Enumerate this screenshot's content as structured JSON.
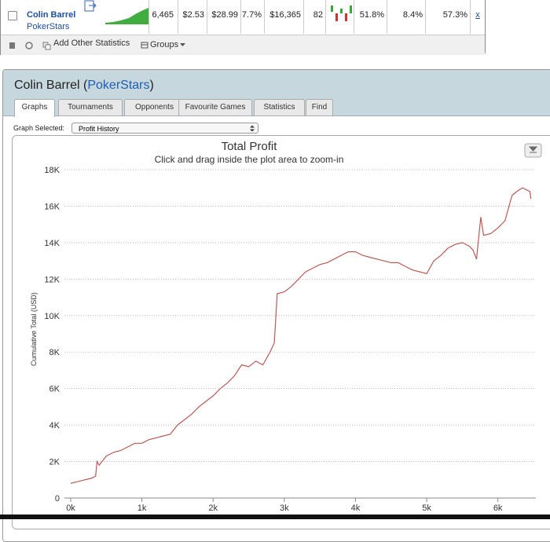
{
  "player_row": {
    "name": "Colin Barrel",
    "site": "PokerStars",
    "stats": [
      "6,465",
      "$2.53",
      "$28.99",
      "7.7%",
      "$16,365",
      "82",
      "51.8%",
      "8.4%",
      "57.3%"
    ],
    "remove": "x"
  },
  "toolbar": {
    "add_stats": "Add Other Statistics",
    "groups": "Groups"
  },
  "panel": {
    "title_parts": [
      "Colin Barrel (",
      "PokerStars",
      ")"
    ],
    "tabs": [
      "Graphs",
      "Tournaments",
      "Opponents",
      "Favourite Games",
      "Statistics",
      "Find"
    ],
    "graph_selected_label": "Graph Selected:",
    "graph_select": "Profit History"
  },
  "chart_data": {
    "type": "line",
    "title": "Total Profit",
    "subtitle": "Click and drag inside the plot area to zoom-in",
    "ylabel": "Cumulative Total (USD)",
    "x": [
      0,
      100,
      200,
      300,
      350,
      370,
      400,
      500,
      600,
      700,
      800,
      900,
      1000,
      1100,
      1200,
      1300,
      1400,
      1500,
      1600,
      1700,
      1800,
      1900,
      2000,
      2100,
      2200,
      2300,
      2400,
      2500,
      2600,
      2700,
      2800,
      2860,
      2900,
      3000,
      3100,
      3200,
      3300,
      3400,
      3500,
      3600,
      3700,
      3800,
      3900,
      4000,
      4100,
      4200,
      4300,
      4400,
      4500,
      4600,
      4700,
      4800,
      4900,
      5000,
      5100,
      5200,
      5300,
      5400,
      5500,
      5600,
      5650,
      5700,
      5760,
      5800,
      5900,
      6000,
      6100,
      6200,
      6300,
      6350,
      6450,
      6465
    ],
    "series": [
      {
        "name": "Total Profit",
        "color": "#b85a55",
        "values": [
          800,
          900,
          1000,
          1100,
          1200,
          2000,
          1800,
          2300,
          2500,
          2600,
          2800,
          3000,
          3000,
          3200,
          3300,
          3400,
          3500,
          4000,
          4300,
          4600,
          5000,
          5300,
          5600,
          6000,
          6300,
          6700,
          7300,
          7200,
          7500,
          7300,
          8000,
          8500,
          11200,
          11300,
          11600,
          12000,
          12400,
          12600,
          12800,
          12900,
          13100,
          13300,
          13500,
          13500,
          13300,
          13200,
          13100,
          13000,
          12900,
          12900,
          12700,
          12500,
          12400,
          12300,
          13000,
          13300,
          13700,
          13900,
          14000,
          13800,
          13600,
          13100,
          15400,
          14400,
          14500,
          14800,
          15200,
          16600,
          16900,
          17000,
          16800,
          16400
        ]
      }
    ],
    "xlim": [
      0,
      6600
    ],
    "ylim": [
      0,
      18000
    ],
    "xticks": [
      {
        "value": 0,
        "label": "0k"
      },
      {
        "value": 1000,
        "label": "1k"
      },
      {
        "value": 2000,
        "label": "2k"
      },
      {
        "value": 3000,
        "label": "3k"
      },
      {
        "value": 4000,
        "label": "4k"
      },
      {
        "value": 5000,
        "label": "5k"
      },
      {
        "value": 6000,
        "label": "6k"
      }
    ],
    "yticks": [
      0,
      {
        "value": 2000,
        "label": "2K"
      },
      {
        "value": 4000,
        "label": "4K"
      },
      {
        "value": 6000,
        "label": "6K"
      },
      {
        "value": 8000,
        "label": "8K"
      },
      {
        "value": 10000,
        "label": "10K"
      },
      {
        "value": 12000,
        "label": "12K"
      },
      {
        "value": 14000,
        "label": "14K"
      },
      {
        "value": 16000,
        "label": "16K"
      },
      {
        "value": 18000,
        "label": "18K"
      }
    ],
    "grid": true
  }
}
